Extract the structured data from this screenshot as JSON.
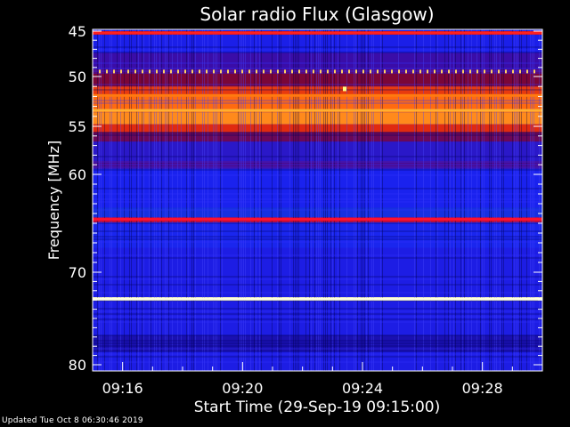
{
  "chart_data": {
    "type": "heatmap",
    "title": "Solar radio Flux (Glasgow)",
    "ylabel": "Frequency [MHz]",
    "xlabel": "Start Time (29-Sep-19 09:15:00)",
    "y_range_mhz": [
      45,
      80
    ],
    "y_ticks": [
      {
        "value": 45,
        "label": "45"
      },
      {
        "value": 50,
        "label": "50"
      },
      {
        "value": 55,
        "label": "55"
      },
      {
        "value": 60,
        "label": "60"
      },
      {
        "value": 70,
        "label": "70"
      },
      {
        "value": 80,
        "label": "80"
      }
    ],
    "x_range_minutes": [
      0,
      15
    ],
    "x_ticks": [
      {
        "minute": 1,
        "label": "09:16"
      },
      {
        "minute": 5,
        "label": "09:20"
      },
      {
        "minute": 9,
        "label": "09:24"
      },
      {
        "minute": 13,
        "label": "09:28"
      }
    ],
    "bands": [
      {
        "from": 45.0,
        "to": 45.4,
        "color": "#d0101e"
      },
      {
        "from": 45.4,
        "to": 47.4,
        "color": "#1b1fe8"
      },
      {
        "from": 47.4,
        "to": 49.2,
        "color": "#3a0da8"
      },
      {
        "from": 49.2,
        "to": 49.7,
        "color": "#5a0a80"
      },
      {
        "from": 49.7,
        "to": 51.0,
        "color": "#7a0638"
      },
      {
        "from": 51.0,
        "to": 52.0,
        "color": "#e83a0e"
      },
      {
        "from": 52.0,
        "to": 53.6,
        "color": "#ff6a10"
      },
      {
        "from": 53.6,
        "to": 54.8,
        "color": "#ff8a1c"
      },
      {
        "from": 54.8,
        "to": 55.6,
        "color": "#e02a10"
      },
      {
        "from": 55.6,
        "to": 56.6,
        "color": "#6a0858"
      },
      {
        "from": 56.6,
        "to": 58.6,
        "color": "#2a18c8"
      },
      {
        "from": 58.6,
        "to": 59.4,
        "color": "#4a0a90"
      },
      {
        "from": 59.4,
        "to": 63.4,
        "color": "#1a22ee"
      },
      {
        "from": 63.4,
        "to": 64.4,
        "color": "#1630e0"
      },
      {
        "from": 64.4,
        "to": 64.9,
        "color": "#e0102a"
      },
      {
        "from": 64.9,
        "to": 67.5,
        "color": "#1a26ee"
      },
      {
        "from": 67.5,
        "to": 72.7,
        "color": "#1d1de4"
      },
      {
        "from": 72.7,
        "to": 73.1,
        "color": "#ffffb0"
      },
      {
        "from": 73.1,
        "to": 76.8,
        "color": "#1d1de4"
      },
      {
        "from": 76.8,
        "to": 78.6,
        "color": "#1a10b0"
      },
      {
        "from": 78.6,
        "to": 80.0,
        "color": "#1d1de4"
      }
    ],
    "hot_lines": [
      {
        "mhz": 45.2,
        "color": "#ff2020"
      },
      {
        "mhz": 51.9,
        "color": "#ff7a10"
      },
      {
        "mhz": 53.4,
        "color": "#ffb030"
      },
      {
        "mhz": 64.6,
        "color": "#ff1030"
      },
      {
        "mhz": 72.9,
        "color": "#ffffe0"
      }
    ],
    "dotted_line_mhz": 49.45,
    "colors": {
      "background": "#000000",
      "axis": "#ffffff",
      "text": "#ffffff",
      "dots": "#ffd060"
    }
  },
  "footer": {
    "updated_text": "Updated Tue Oct  8 06:30:46 2019"
  }
}
